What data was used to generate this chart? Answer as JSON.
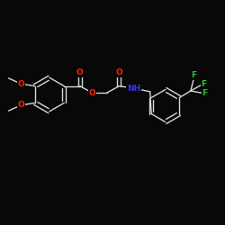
{
  "bg_color": "#080808",
  "bond_color": "#d8d8d8",
  "O_color": "#ff2200",
  "N_color": "#3333ff",
  "F_color": "#22cc22",
  "figsize": [
    2.5,
    2.5
  ],
  "dpi": 100,
  "xlim": [
    0,
    10
  ],
  "ylim": [
    0,
    10
  ]
}
